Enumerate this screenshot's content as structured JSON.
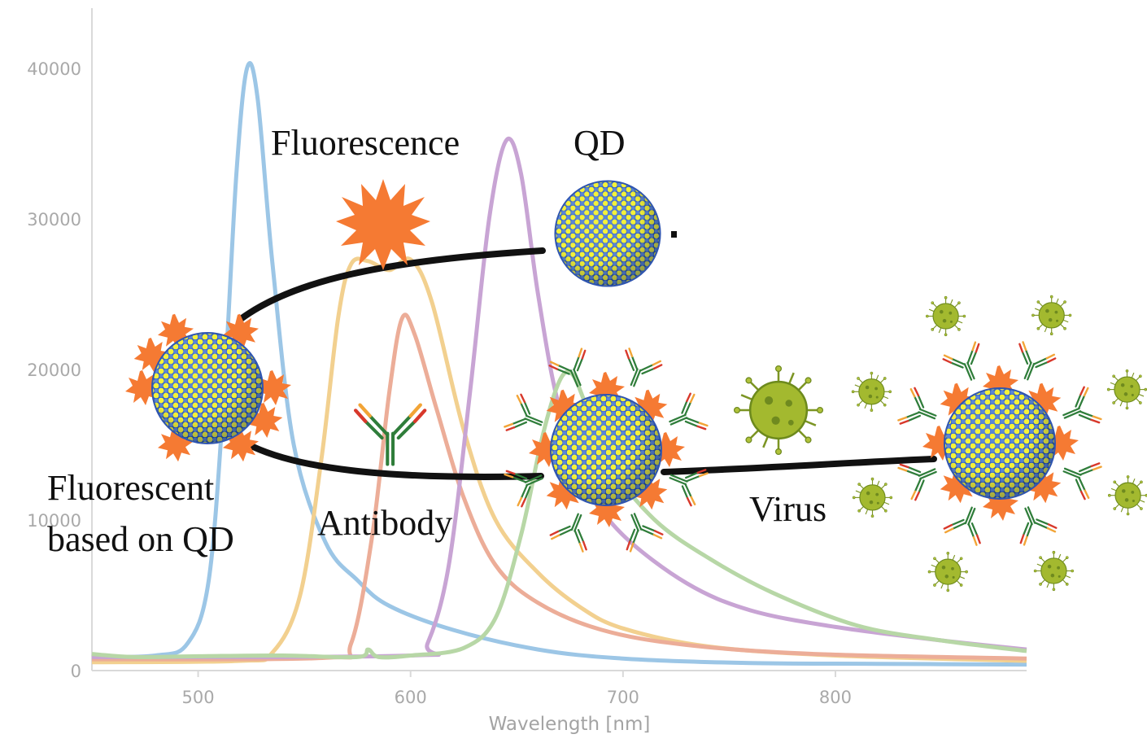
{
  "chart_data": {
    "type": "line",
    "xlabel": "Wavelength [nm]",
    "ylabel": "",
    "x_ticks": [
      500,
      600,
      700,
      800
    ],
    "y_ticks": [
      0,
      10000,
      20000,
      30000,
      40000
    ],
    "xlim": [
      450,
      890
    ],
    "ylim": [
      0,
      44000
    ],
    "grid": false,
    "series": [
      {
        "color": "#9cc6e6",
        "points": [
          [
            450,
            900
          ],
          [
            480,
            1000
          ],
          [
            495,
            1800
          ],
          [
            505,
            6000
          ],
          [
            512,
            18000
          ],
          [
            518,
            33000
          ],
          [
            523,
            40000
          ],
          [
            528,
            38000
          ],
          [
            535,
            27000
          ],
          [
            545,
            15000
          ],
          [
            560,
            8500
          ],
          [
            575,
            6000
          ],
          [
            590,
            4300
          ],
          [
            620,
            2700
          ],
          [
            660,
            1400
          ],
          [
            700,
            800
          ],
          [
            760,
            500
          ],
          [
            820,
            450
          ],
          [
            890,
            400
          ]
        ]
      },
      {
        "color": "#f2d08f",
        "points": [
          [
            450,
            550
          ],
          [
            520,
            650
          ],
          [
            535,
            1200
          ],
          [
            548,
            5000
          ],
          [
            558,
            14000
          ],
          [
            566,
            23500
          ],
          [
            572,
            27000
          ],
          [
            580,
            27200
          ],
          [
            590,
            26600
          ],
          [
            600,
            27300
          ],
          [
            610,
            24500
          ],
          [
            625,
            16000
          ],
          [
            640,
            10000
          ],
          [
            660,
            6500
          ],
          [
            680,
            4200
          ],
          [
            700,
            2800
          ],
          [
            740,
            1600
          ],
          [
            800,
            1000
          ],
          [
            890,
            650
          ]
        ]
      },
      {
        "color": "#ecad98",
        "points": [
          [
            450,
            750
          ],
          [
            560,
            850
          ],
          [
            572,
            1800
          ],
          [
            582,
            9000
          ],
          [
            590,
            18500
          ],
          [
            596,
            23400
          ],
          [
            602,
            22300
          ],
          [
            612,
            17500
          ],
          [
            625,
            11500
          ],
          [
            640,
            7000
          ],
          [
            660,
            4500
          ],
          [
            690,
            2700
          ],
          [
            730,
            1700
          ],
          [
            790,
            1100
          ],
          [
            890,
            800
          ]
        ]
      },
      {
        "color": "#c8a4d4",
        "points": [
          [
            450,
            900
          ],
          [
            600,
            1000
          ],
          [
            608,
            1800
          ],
          [
            618,
            7000
          ],
          [
            628,
            18500
          ],
          [
            637,
            30000
          ],
          [
            645,
            35200
          ],
          [
            652,
            33000
          ],
          [
            660,
            25000
          ],
          [
            670,
            17500
          ],
          [
            685,
            12000
          ],
          [
            700,
            9000
          ],
          [
            730,
            5800
          ],
          [
            760,
            4000
          ],
          [
            800,
            2900
          ],
          [
            850,
            2000
          ],
          [
            890,
            1400
          ]
        ]
      },
      {
        "color": "#b7d7a6",
        "points": [
          [
            450,
            1100
          ],
          [
            470,
            900
          ],
          [
            500,
            950
          ],
          [
            540,
            1000
          ],
          [
            575,
            900
          ],
          [
            580,
            1400
          ],
          [
            585,
            900
          ],
          [
            600,
            1000
          ],
          [
            625,
            1500
          ],
          [
            640,
            3500
          ],
          [
            652,
            9000
          ],
          [
            662,
            15500
          ],
          [
            670,
            19200
          ],
          [
            676,
            19700
          ],
          [
            683,
            17500
          ],
          [
            695,
            13500
          ],
          [
            715,
            10000
          ],
          [
            740,
            7500
          ],
          [
            770,
            5200
          ],
          [
            810,
            3000
          ],
          [
            850,
            2000
          ],
          [
            890,
            1300
          ]
        ]
      }
    ]
  },
  "annotations": {
    "fluorescence": "Fluorescence",
    "qd": "QD",
    "fluorescent_line1": "Fluorescent",
    "fluorescent_line2": "based on QD",
    "antibody": "Antibody",
    "virus": "Virus"
  }
}
